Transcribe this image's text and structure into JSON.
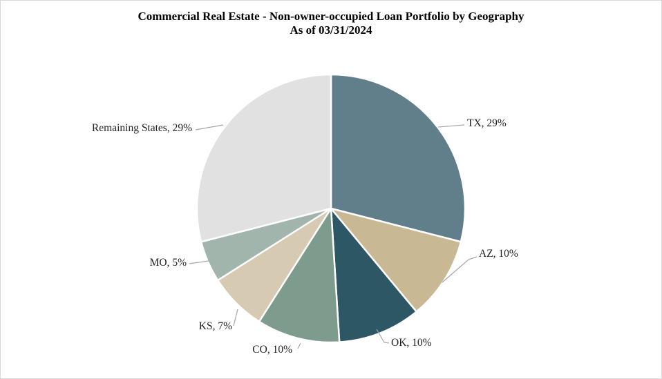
{
  "chart_data": {
    "type": "pie",
    "title": "Commercial Real Estate - Non-owner-occupied Loan Portfolio by Geography",
    "subtitle": "As of 03/31/2024",
    "slices": [
      {
        "label": "TX, 29%",
        "value": 29,
        "color": "#607f8b"
      },
      {
        "label": "AZ, 10%",
        "value": 10,
        "color": "#c8b994"
      },
      {
        "label": "OK, 10%",
        "value": 10,
        "color": "#2e5766"
      },
      {
        "label": "CO, 10%",
        "value": 10,
        "color": "#7e9c8e"
      },
      {
        "label": "KS, 7%",
        "value": 7,
        "color": "#d6cab2"
      },
      {
        "label": "MO, 5%",
        "value": 5,
        "color": "#a1b5ac"
      },
      {
        "label": "Remaining States, 29%",
        "value": 29,
        "color": "#e1e1e1"
      }
    ]
  }
}
